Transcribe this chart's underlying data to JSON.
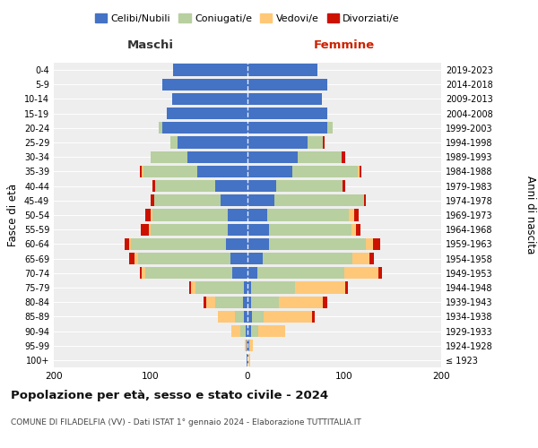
{
  "age_groups": [
    "100+",
    "95-99",
    "90-94",
    "85-89",
    "80-84",
    "75-79",
    "70-74",
    "65-69",
    "60-64",
    "55-59",
    "50-54",
    "45-49",
    "40-44",
    "35-39",
    "30-34",
    "25-29",
    "20-24",
    "15-19",
    "10-14",
    "5-9",
    "0-4"
  ],
  "birth_years": [
    "≤ 1923",
    "1924-1928",
    "1929-1933",
    "1934-1938",
    "1939-1943",
    "1944-1948",
    "1949-1953",
    "1954-1958",
    "1959-1963",
    "1964-1968",
    "1969-1973",
    "1974-1978",
    "1979-1983",
    "1984-1988",
    "1989-1993",
    "1994-1998",
    "1999-2003",
    "2004-2008",
    "2009-2013",
    "2014-2018",
    "2019-2023"
  ],
  "colors": {
    "celibi": "#4472c4",
    "coniugati": "#b8cfa0",
    "vedovi": "#ffc878",
    "divorziati": "#cc1100"
  },
  "maschi": {
    "celibi": [
      1,
      1,
      2,
      4,
      5,
      4,
      16,
      18,
      22,
      20,
      20,
      28,
      33,
      52,
      62,
      72,
      88,
      83,
      78,
      88,
      77
    ],
    "coniugati": [
      0,
      0,
      5,
      9,
      28,
      50,
      90,
      95,
      98,
      80,
      78,
      68,
      62,
      55,
      38,
      8,
      4,
      0,
      0,
      0,
      0
    ],
    "vedovi": [
      0,
      2,
      10,
      18,
      10,
      4,
      3,
      4,
      2,
      2,
      2,
      0,
      0,
      2,
      0,
      0,
      0,
      0,
      0,
      0,
      0
    ],
    "divorziati": [
      0,
      0,
      0,
      0,
      2,
      2,
      2,
      5,
      5,
      8,
      6,
      4,
      3,
      2,
      0,
      0,
      0,
      0,
      0,
      0,
      0
    ]
  },
  "femmine": {
    "celibi": [
      1,
      2,
      4,
      5,
      4,
      4,
      10,
      16,
      22,
      22,
      20,
      28,
      30,
      46,
      52,
      62,
      82,
      82,
      77,
      82,
      72
    ],
    "coniugati": [
      0,
      0,
      7,
      12,
      28,
      45,
      90,
      92,
      100,
      85,
      85,
      92,
      68,
      68,
      45,
      16,
      6,
      0,
      0,
      0,
      0
    ],
    "vedovi": [
      2,
      4,
      28,
      50,
      46,
      52,
      35,
      18,
      8,
      5,
      5,
      0,
      0,
      2,
      0,
      0,
      0,
      0,
      0,
      0,
      0
    ],
    "divorziati": [
      0,
      0,
      0,
      2,
      4,
      3,
      4,
      5,
      7,
      5,
      5,
      2,
      3,
      2,
      4,
      2,
      0,
      0,
      0,
      0,
      0
    ]
  },
  "title": "Popolazione per età, sesso e stato civile - 2024",
  "subtitle": "COMUNE DI FILADELFIA (VV) - Dati ISTAT 1° gennaio 2024 - Elaborazione TUTTITALIA.IT",
  "label_maschi": "Maschi",
  "label_femmine": "Femmine",
  "ylabel_left": "Fasce di età",
  "ylabel_right": "Anni di nascita",
  "legend_labels": [
    "Celibi/Nubili",
    "Coniugati/e",
    "Vedovi/e",
    "Divorziati/e"
  ],
  "xlim": 200,
  "bg_color": "#eeeeee"
}
